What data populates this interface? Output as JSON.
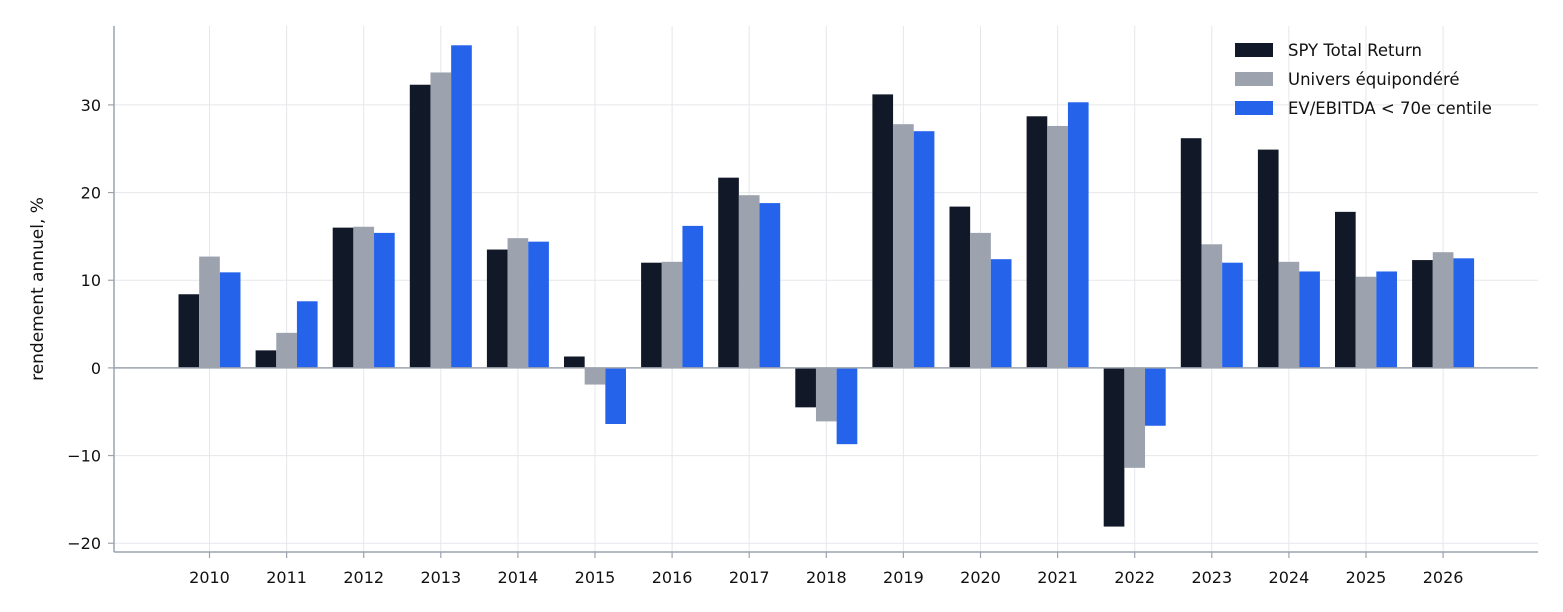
{
  "chart_data": {
    "type": "bar",
    "title": "",
    "xlabel": "",
    "ylabel": "rendement annuel, %",
    "ylim": [
      -21,
      39
    ],
    "yticks": [
      -20,
      -10,
      0,
      10,
      20,
      30
    ],
    "ytick_labels": [
      "−20",
      "−10",
      "0",
      "10",
      "20",
      "30"
    ],
    "grid": true,
    "legend_position": "top-right",
    "categories": [
      "2010",
      "2011",
      "2012",
      "2013",
      "2014",
      "2015",
      "2016",
      "2017",
      "2018",
      "2019",
      "2020",
      "2021",
      "2022",
      "2023",
      "2024",
      "2025",
      "2026"
    ],
    "series": [
      {
        "name": "SPY Total Return",
        "color": "#111827",
        "values": [
          8.4,
          2.0,
          16.0,
          32.3,
          13.5,
          1.3,
          12.0,
          21.7,
          -4.5,
          31.2,
          18.4,
          28.7,
          -18.1,
          26.2,
          24.9,
          17.8,
          12.3
        ]
      },
      {
        "name": "Univers équipondéré",
        "color": "#9CA3AF",
        "values": [
          12.7,
          4.0,
          16.1,
          33.7,
          14.8,
          -1.9,
          12.1,
          19.7,
          -6.1,
          27.8,
          15.4,
          27.6,
          -11.4,
          14.1,
          12.1,
          10.4,
          13.2
        ]
      },
      {
        "name": "EV/EBITDA < 70e centile",
        "color": "#2563EB",
        "values": [
          10.9,
          7.6,
          15.4,
          36.8,
          14.4,
          -6.4,
          16.2,
          18.8,
          -8.7,
          27.0,
          12.4,
          30.3,
          -6.6,
          12.0,
          11.0,
          11.0,
          12.5
        ]
      }
    ]
  }
}
